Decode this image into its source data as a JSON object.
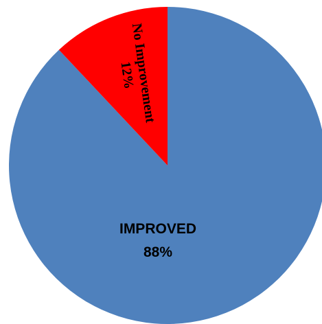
{
  "chart_data": {
    "type": "pie",
    "title": "",
    "start_angle_deg": 0,
    "direction": "clockwise",
    "slices": [
      {
        "category": "IMPROVED",
        "percent_label": "88%",
        "value": 88,
        "color": "#4f81bd"
      },
      {
        "category": "No Improvement",
        "percent_label": "12%",
        "value": 12,
        "color": "#ff0000"
      }
    ],
    "legend": "none"
  }
}
